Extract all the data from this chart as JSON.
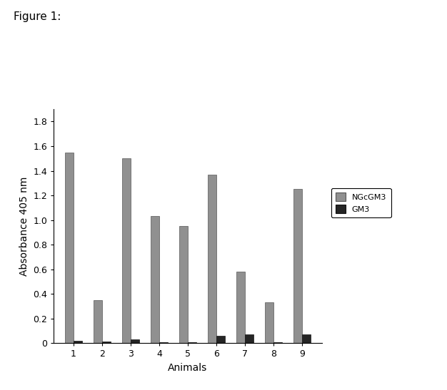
{
  "animals": [
    1,
    2,
    3,
    4,
    5,
    6,
    7,
    8,
    9
  ],
  "NGcGM3": [
    1.55,
    0.35,
    1.5,
    1.03,
    0.95,
    1.37,
    0.58,
    0.33,
    1.25
  ],
  "GM3": [
    0.02,
    0.015,
    0.03,
    0.01,
    0.01,
    0.06,
    0.07,
    0.01,
    0.07
  ],
  "NGcGM3_color": "#909090",
  "GM3_color": "#252525",
  "xlabel": "Animals",
  "ylabel": "Absorbance 405 nm",
  "ylim": [
    0,
    1.9
  ],
  "yticks": [
    0,
    0.2,
    0.4,
    0.6,
    0.8,
    1.0,
    1.2,
    1.4,
    1.6,
    1.8
  ],
  "figure_label": "Figure 1:",
  "bar_width": 0.3,
  "background_color": "#ffffff",
  "legend_labels": [
    "NGcGM3",
    "GM3"
  ]
}
